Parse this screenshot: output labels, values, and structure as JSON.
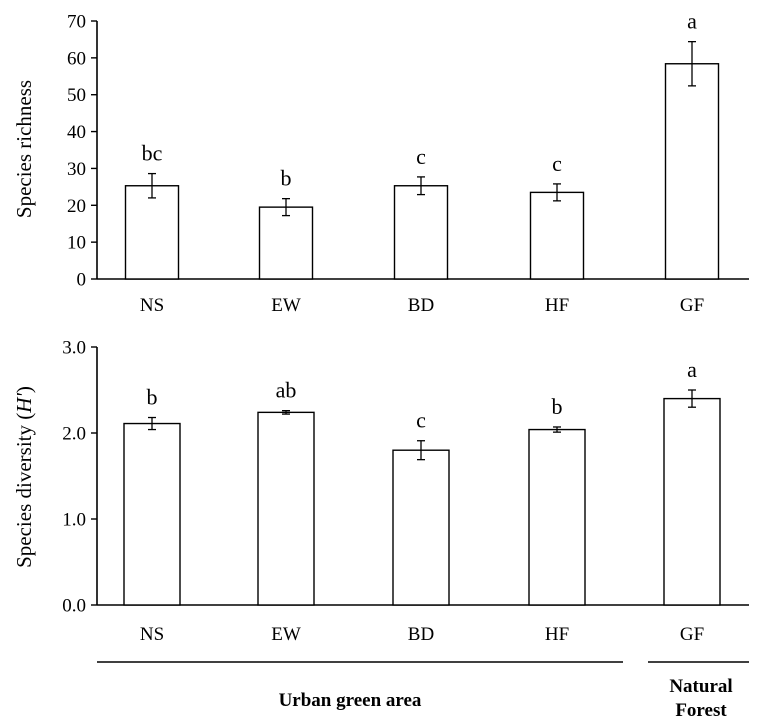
{
  "chart_data": [
    {
      "type": "bar",
      "title": "",
      "xlabel": "",
      "ylabel": "Species richness",
      "ylim": [
        0,
        70
      ],
      "yticks": [
        "0",
        "10",
        "20",
        "30",
        "40",
        "50",
        "60",
        "70"
      ],
      "categories": [
        "NS",
        "EW",
        "BD",
        "HF",
        "GF"
      ],
      "values": [
        25.3,
        19.5,
        25.3,
        23.5,
        58.4
      ],
      "errors": [
        3.3,
        2.3,
        2.4,
        2.3,
        6.0
      ],
      "significance": [
        "bc",
        "b",
        "c",
        "c",
        "a"
      ],
      "grid": false,
      "bar_fill": "#ffffff",
      "bar_stroke": "#000000"
    },
    {
      "type": "bar",
      "title": "",
      "xlabel": "",
      "ylabel": "Species diversity (H')",
      "ylabel_parts": {
        "main": "Species diversity (",
        "italic": "H'",
        "close": ")"
      },
      "ylim": [
        0,
        3
      ],
      "yticks": [
        "0.0",
        "1.0",
        "2.0",
        "3.0"
      ],
      "categories": [
        "NS",
        "EW",
        "BD",
        "HF",
        "GF"
      ],
      "values": [
        2.11,
        2.24,
        1.8,
        2.04,
        2.4
      ],
      "errors": [
        0.07,
        0.02,
        0.11,
        0.03,
        0.1
      ],
      "significance": [
        "b",
        "ab",
        "c",
        "b",
        "a"
      ],
      "grid": false,
      "bar_fill": "#ffffff",
      "bar_stroke": "#000000"
    }
  ],
  "groups": {
    "urban": "Urban green area",
    "natural_line1": "Natural",
    "natural_line2": "Forest"
  }
}
